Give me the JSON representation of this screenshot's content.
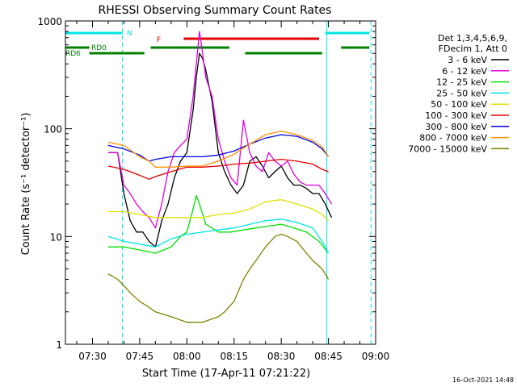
{
  "chart_data": {
    "type": "line",
    "title": "RHESSI Observing Summary Count Rates",
    "xlabel": "Start Time (17-Apr-11 07:21:22)",
    "ylabel": "Count Rate (s⁻¹ detector⁻¹)",
    "x_unit": "minutes after 07:00 UT",
    "xlim": [
      21.4,
      120
    ],
    "ylim": [
      1,
      1000
    ],
    "yscale": "log",
    "x_ticks": [
      {
        "v": 30,
        "label": "07:30"
      },
      {
        "v": 45,
        "label": "07:45"
      },
      {
        "v": 60,
        "label": "08:00"
      },
      {
        "v": 75,
        "label": "08:15"
      },
      {
        "v": 90,
        "label": "08:30"
      },
      {
        "v": 105,
        "label": "08:45"
      },
      {
        "v": 120,
        "label": "09:00"
      }
    ],
    "y_ticks": [
      {
        "v": 1,
        "label": "1"
      },
      {
        "v": 10,
        "label": "10"
      },
      {
        "v": 100,
        "label": "100"
      },
      {
        "v": 1000,
        "label": "1000"
      }
    ],
    "legend_title": [
      "Det 1,3,4,5,6,9,",
      "FDecim 1, Att 0"
    ],
    "legend_position": "right",
    "timestamp": "16-Oct-2021 14:48",
    "flag_bars": [
      {
        "name": "N",
        "color": "#00e5e5",
        "segments": [
          [
            21.4,
            39.5
          ],
          [
            104,
            118
          ]
        ]
      },
      {
        "name": "F",
        "color": "#e00000",
        "segments": [
          [
            59,
            102
          ]
        ]
      },
      {
        "name": "RD0",
        "color": "#008000",
        "segments": [
          [
            21.4,
            29
          ],
          [
            48.5,
            73.5
          ],
          [
            109,
            118
          ]
        ]
      },
      {
        "name": "RD6",
        "color": "#008000",
        "segments": [
          [
            29,
            46.5
          ],
          [
            78.5,
            103
          ]
        ]
      }
    ],
    "vlines": [
      {
        "color": "#00e5e5",
        "style": "solid",
        "x": [
          21.4,
          104.5
        ]
      },
      {
        "color": "#00e5e5",
        "style": "dashed",
        "x": [
          39.5,
          118.5
        ]
      }
    ],
    "series": [
      {
        "name": "3 - 6 keV",
        "color": "#000000",
        "points": [
          [
            35,
            60
          ],
          [
            38,
            60
          ],
          [
            40,
            25
          ],
          [
            42,
            14
          ],
          [
            44,
            11
          ],
          [
            46,
            11
          ],
          [
            48,
            9
          ],
          [
            50,
            8
          ],
          [
            52,
            14
          ],
          [
            54,
            20
          ],
          [
            56,
            35
          ],
          [
            58,
            50
          ],
          [
            60,
            60
          ],
          [
            62,
            150
          ],
          [
            63,
            300
          ],
          [
            64,
            500
          ],
          [
            65,
            450
          ],
          [
            66,
            350
          ],
          [
            68,
            180
          ],
          [
            70,
            60
          ],
          [
            72,
            40
          ],
          [
            74,
            30
          ],
          [
            76,
            25
          ],
          [
            78,
            30
          ],
          [
            80,
            50
          ],
          [
            82,
            55
          ],
          [
            84,
            45
          ],
          [
            86,
            35
          ],
          [
            88,
            40
          ],
          [
            90,
            45
          ],
          [
            92,
            35
          ],
          [
            94,
            30
          ],
          [
            96,
            30
          ],
          [
            98,
            28
          ],
          [
            100,
            25
          ],
          [
            102,
            25
          ],
          [
            104,
            20
          ],
          [
            106,
            15
          ]
        ]
      },
      {
        "name": "6 - 12 keV",
        "color": "#e000e0",
        "points": [
          [
            35,
            60
          ],
          [
            38,
            60
          ],
          [
            40,
            30
          ],
          [
            42,
            25
          ],
          [
            44,
            20
          ],
          [
            46,
            17
          ],
          [
            48,
            15
          ],
          [
            50,
            12
          ],
          [
            52,
            20
          ],
          [
            54,
            40
          ],
          [
            56,
            60
          ],
          [
            58,
            70
          ],
          [
            60,
            80
          ],
          [
            62,
            200
          ],
          [
            63,
            400
          ],
          [
            64,
            800
          ],
          [
            65,
            500
          ],
          [
            66,
            300
          ],
          [
            68,
            200
          ],
          [
            70,
            80
          ],
          [
            72,
            50
          ],
          [
            74,
            35
          ],
          [
            76,
            30
          ],
          [
            78,
            120
          ],
          [
            80,
            60
          ],
          [
            82,
            45
          ],
          [
            84,
            40
          ],
          [
            86,
            60
          ],
          [
            88,
            50
          ],
          [
            90,
            45
          ],
          [
            92,
            50
          ],
          [
            94,
            38
          ],
          [
            96,
            32
          ],
          [
            98,
            30
          ],
          [
            100,
            30
          ],
          [
            102,
            30
          ],
          [
            104,
            25
          ],
          [
            106,
            20
          ]
        ]
      },
      {
        "name": "12 - 25 keV",
        "color": "#00e000",
        "points": [
          [
            35,
            8
          ],
          [
            40,
            8
          ],
          [
            45,
            7.5
          ],
          [
            50,
            7
          ],
          [
            55,
            8
          ],
          [
            58,
            10
          ],
          [
            60,
            11
          ],
          [
            62,
            18
          ],
          [
            63,
            24
          ],
          [
            64,
            20
          ],
          [
            66,
            13
          ],
          [
            70,
            11
          ],
          [
            74,
            11
          ],
          [
            78,
            11.5
          ],
          [
            82,
            12
          ],
          [
            86,
            12.5
          ],
          [
            90,
            13
          ],
          [
            94,
            12
          ],
          [
            98,
            11
          ],
          [
            102,
            9
          ],
          [
            105,
            7
          ]
        ]
      },
      {
        "name": "25 - 50 keV",
        "color": "#00e5e5",
        "points": [
          [
            35,
            10
          ],
          [
            40,
            9
          ],
          [
            45,
            8.5
          ],
          [
            50,
            8
          ],
          [
            55,
            9.5
          ],
          [
            60,
            10.5
          ],
          [
            65,
            11
          ],
          [
            70,
            11.5
          ],
          [
            75,
            12
          ],
          [
            80,
            13
          ],
          [
            85,
            14
          ],
          [
            90,
            14.5
          ],
          [
            95,
            13.5
          ],
          [
            100,
            12
          ],
          [
            103,
            9
          ],
          [
            105,
            7
          ]
        ]
      },
      {
        "name": "50 - 100 keV",
        "color": "#e0e000",
        "points": [
          [
            35,
            17
          ],
          [
            40,
            17
          ],
          [
            45,
            16
          ],
          [
            50,
            15
          ],
          [
            55,
            15
          ],
          [
            60,
            15
          ],
          [
            65,
            15
          ],
          [
            70,
            16
          ],
          [
            75,
            16.5
          ],
          [
            80,
            18
          ],
          [
            85,
            21
          ],
          [
            90,
            22
          ],
          [
            95,
            20
          ],
          [
            100,
            18
          ],
          [
            103,
            16
          ],
          [
            105,
            14
          ]
        ]
      },
      {
        "name": "100 - 300 keV",
        "color": "#e00000",
        "points": [
          [
            35,
            45
          ],
          [
            40,
            42
          ],
          [
            45,
            37
          ],
          [
            48,
            34
          ],
          [
            50,
            36
          ],
          [
            55,
            40
          ],
          [
            60,
            44
          ],
          [
            65,
            44
          ],
          [
            70,
            45
          ],
          [
            75,
            47
          ],
          [
            80,
            48
          ],
          [
            85,
            50
          ],
          [
            90,
            52
          ],
          [
            95,
            50
          ],
          [
            100,
            47
          ],
          [
            103,
            42
          ],
          [
            105,
            40
          ]
        ]
      },
      {
        "name": "300 - 800 keV",
        "color": "#0000e0",
        "points": [
          [
            35,
            70
          ],
          [
            40,
            65
          ],
          [
            45,
            57
          ],
          [
            48,
            50
          ],
          [
            50,
            52
          ],
          [
            55,
            55
          ],
          [
            60,
            55
          ],
          [
            65,
            55
          ],
          [
            70,
            57
          ],
          [
            75,
            62
          ],
          [
            80,
            72
          ],
          [
            85,
            82
          ],
          [
            90,
            88
          ],
          [
            95,
            85
          ],
          [
            100,
            75
          ],
          [
            103,
            65
          ],
          [
            105,
            55
          ]
        ]
      },
      {
        "name": "800 - 7000 keV",
        "color": "#ff9000",
        "points": [
          [
            35,
            75
          ],
          [
            40,
            70
          ],
          [
            45,
            55
          ],
          [
            48,
            50
          ],
          [
            50,
            44
          ],
          [
            55,
            44
          ],
          [
            60,
            45
          ],
          [
            65,
            45
          ],
          [
            70,
            50
          ],
          [
            75,
            58
          ],
          [
            80,
            72
          ],
          [
            85,
            88
          ],
          [
            90,
            95
          ],
          [
            95,
            88
          ],
          [
            100,
            78
          ],
          [
            103,
            68
          ],
          [
            105,
            55
          ]
        ]
      },
      {
        "name": "7000 - 15000 keV",
        "color": "#808000",
        "points": [
          [
            35,
            4.5
          ],
          [
            38,
            4
          ],
          [
            40,
            3.5
          ],
          [
            42,
            3
          ],
          [
            45,
            2.5
          ],
          [
            48,
            2.2
          ],
          [
            50,
            2
          ],
          [
            55,
            1.8
          ],
          [
            60,
            1.6
          ],
          [
            65,
            1.6
          ],
          [
            70,
            1.8
          ],
          [
            72,
            2
          ],
          [
            75,
            2.5
          ],
          [
            78,
            4
          ],
          [
            80,
            5
          ],
          [
            82,
            6
          ],
          [
            85,
            8
          ],
          [
            88,
            10
          ],
          [
            90,
            10.5
          ],
          [
            92,
            10
          ],
          [
            95,
            9
          ],
          [
            98,
            7
          ],
          [
            100,
            6
          ],
          [
            103,
            5
          ],
          [
            105,
            4
          ]
        ]
      }
    ]
  }
}
